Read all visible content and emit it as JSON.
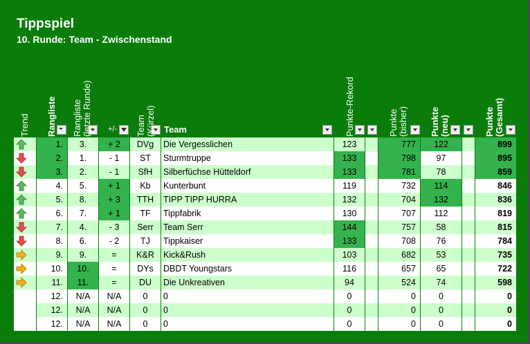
{
  "title": "Tippspiel",
  "subtitle": "10. Runde: Team - Zwischenstand",
  "headers": {
    "trend": "Trend",
    "rangliste": "Rangliste",
    "rangliste_letzte": "Rangliste\n(letzte Runde)",
    "diff": "+/-",
    "team_kurzel": "Team\n(Kürzel)",
    "team": "Team",
    "rekord": "Punkte-Rekord",
    "punkte_bisher": "Punkte\n(bisher)",
    "punkte_neu": "Punkte\n(neu)",
    "punkte_gesamt": "Punkte\n(Gesamt)"
  },
  "colors": {
    "background": "#0a7c0a",
    "highlight": "#33b24d",
    "row_light": "#ccffcc",
    "row_white": "#ffffff",
    "arrow_up": "#5cb85c",
    "arrow_down": "#e05050",
    "arrow_right": "#f0b020"
  },
  "rows": [
    {
      "trend": "up",
      "rank": "1.",
      "last": "3.",
      "diff": "+ 2",
      "abbr": "DVg",
      "team": "Die Vergesslichen",
      "rekord": "123",
      "bisher": "777",
      "neu": "122",
      "gesamt": "899"
    },
    {
      "trend": "down",
      "rank": "2.",
      "last": "1.",
      "diff": "- 1",
      "abbr": "ST",
      "team": "Sturmtruppe",
      "rekord": "133",
      "bisher": "798",
      "neu": "97",
      "gesamt": "895"
    },
    {
      "trend": "down",
      "rank": "3.",
      "last": "2.",
      "diff": "- 1",
      "abbr": "SfH",
      "team": "Silberfüchse Hütteldorf",
      "rekord": "133",
      "bisher": "781",
      "neu": "78",
      "gesamt": "859"
    },
    {
      "trend": "up",
      "rank": "4.",
      "last": "5.",
      "diff": "+ 1",
      "abbr": "Kb",
      "team": "Kunterbunt",
      "rekord": "119",
      "bisher": "732",
      "neu": "114",
      "gesamt": "846"
    },
    {
      "trend": "up",
      "rank": "5.",
      "last": "8.",
      "diff": "+ 3",
      "abbr": "TTH",
      "team": "TIPP TIPP HURRA",
      "rekord": "132",
      "bisher": "704",
      "neu": "132",
      "gesamt": "836"
    },
    {
      "trend": "up",
      "rank": "6.",
      "last": "7.",
      "diff": "+ 1",
      "abbr": "TF",
      "team": "Tippfabrik",
      "rekord": "130",
      "bisher": "707",
      "neu": "112",
      "gesamt": "819"
    },
    {
      "trend": "down",
      "rank": "7.",
      "last": "4.",
      "diff": "- 3",
      "abbr": "Serr",
      "team": "Team Serr",
      "rekord": "144",
      "bisher": "757",
      "neu": "58",
      "gesamt": "815"
    },
    {
      "trend": "down",
      "rank": "8.",
      "last": "6.",
      "diff": "- 2",
      "abbr": "TJ",
      "team": "Tippkaiser",
      "rekord": "133",
      "bisher": "708",
      "neu": "76",
      "gesamt": "784"
    },
    {
      "trend": "right",
      "rank": "9.",
      "last": "9.",
      "diff": "=",
      "abbr": "K&R",
      "team": "Kick&Rush",
      "rekord": "103",
      "bisher": "682",
      "neu": "53",
      "gesamt": "735"
    },
    {
      "trend": "right",
      "rank": "10.",
      "last": "10.",
      "diff": "=",
      "abbr": "DYs",
      "team": "DBDT Youngstars",
      "rekord": "116",
      "bisher": "657",
      "neu": "65",
      "gesamt": "722"
    },
    {
      "trend": "right",
      "rank": "11.",
      "last": "11.",
      "diff": "=",
      "abbr": "DU",
      "team": "Die Unkreativen",
      "rekord": "94",
      "bisher": "524",
      "neu": "74",
      "gesamt": "598"
    },
    {
      "trend": "",
      "rank": "12.",
      "last": "N/A",
      "diff": "N/A",
      "abbr": "0",
      "team": "0",
      "rekord": "0",
      "bisher": "0",
      "neu": "0",
      "gesamt": "0"
    },
    {
      "trend": "",
      "rank": "12.",
      "last": "N/A",
      "diff": "N/A",
      "abbr": "0",
      "team": "0",
      "rekord": "0",
      "bisher": "0",
      "neu": "0",
      "gesamt": "0"
    },
    {
      "trend": "",
      "rank": "12.",
      "last": "N/A",
      "diff": "N/A",
      "abbr": "0",
      "team": "0",
      "rekord": "0",
      "bisher": "0",
      "neu": "0",
      "gesamt": "0"
    }
  ]
}
